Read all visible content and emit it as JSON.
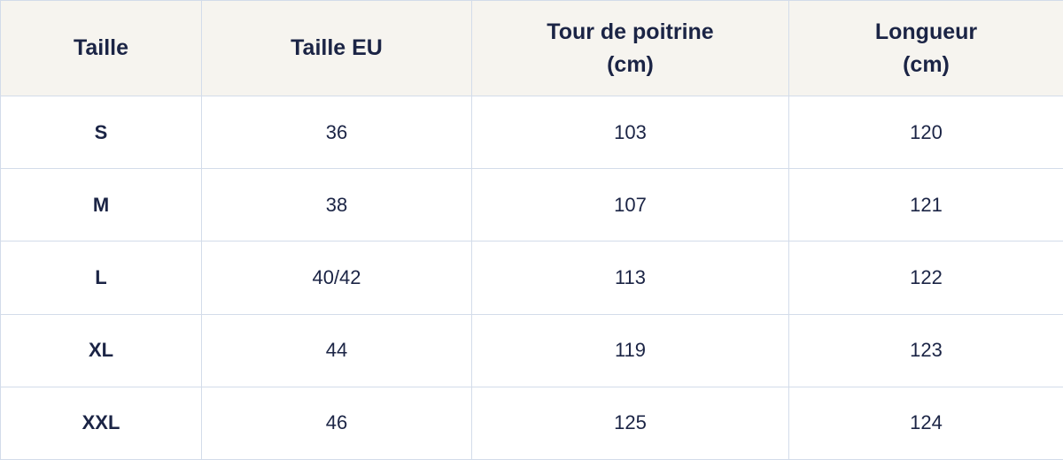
{
  "table": {
    "header": [
      "Taille",
      "Taille EU",
      "Tour de poitrine (cm)",
      "Longueur (cm)"
    ],
    "rows": [
      [
        "S",
        36,
        103,
        120
      ],
      [
        "M",
        38,
        107,
        121
      ],
      [
        "L",
        "40/42",
        113,
        122
      ],
      [
        "XL",
        44,
        119,
        123
      ],
      [
        "XXL",
        46,
        125,
        124
      ]
    ]
  }
}
